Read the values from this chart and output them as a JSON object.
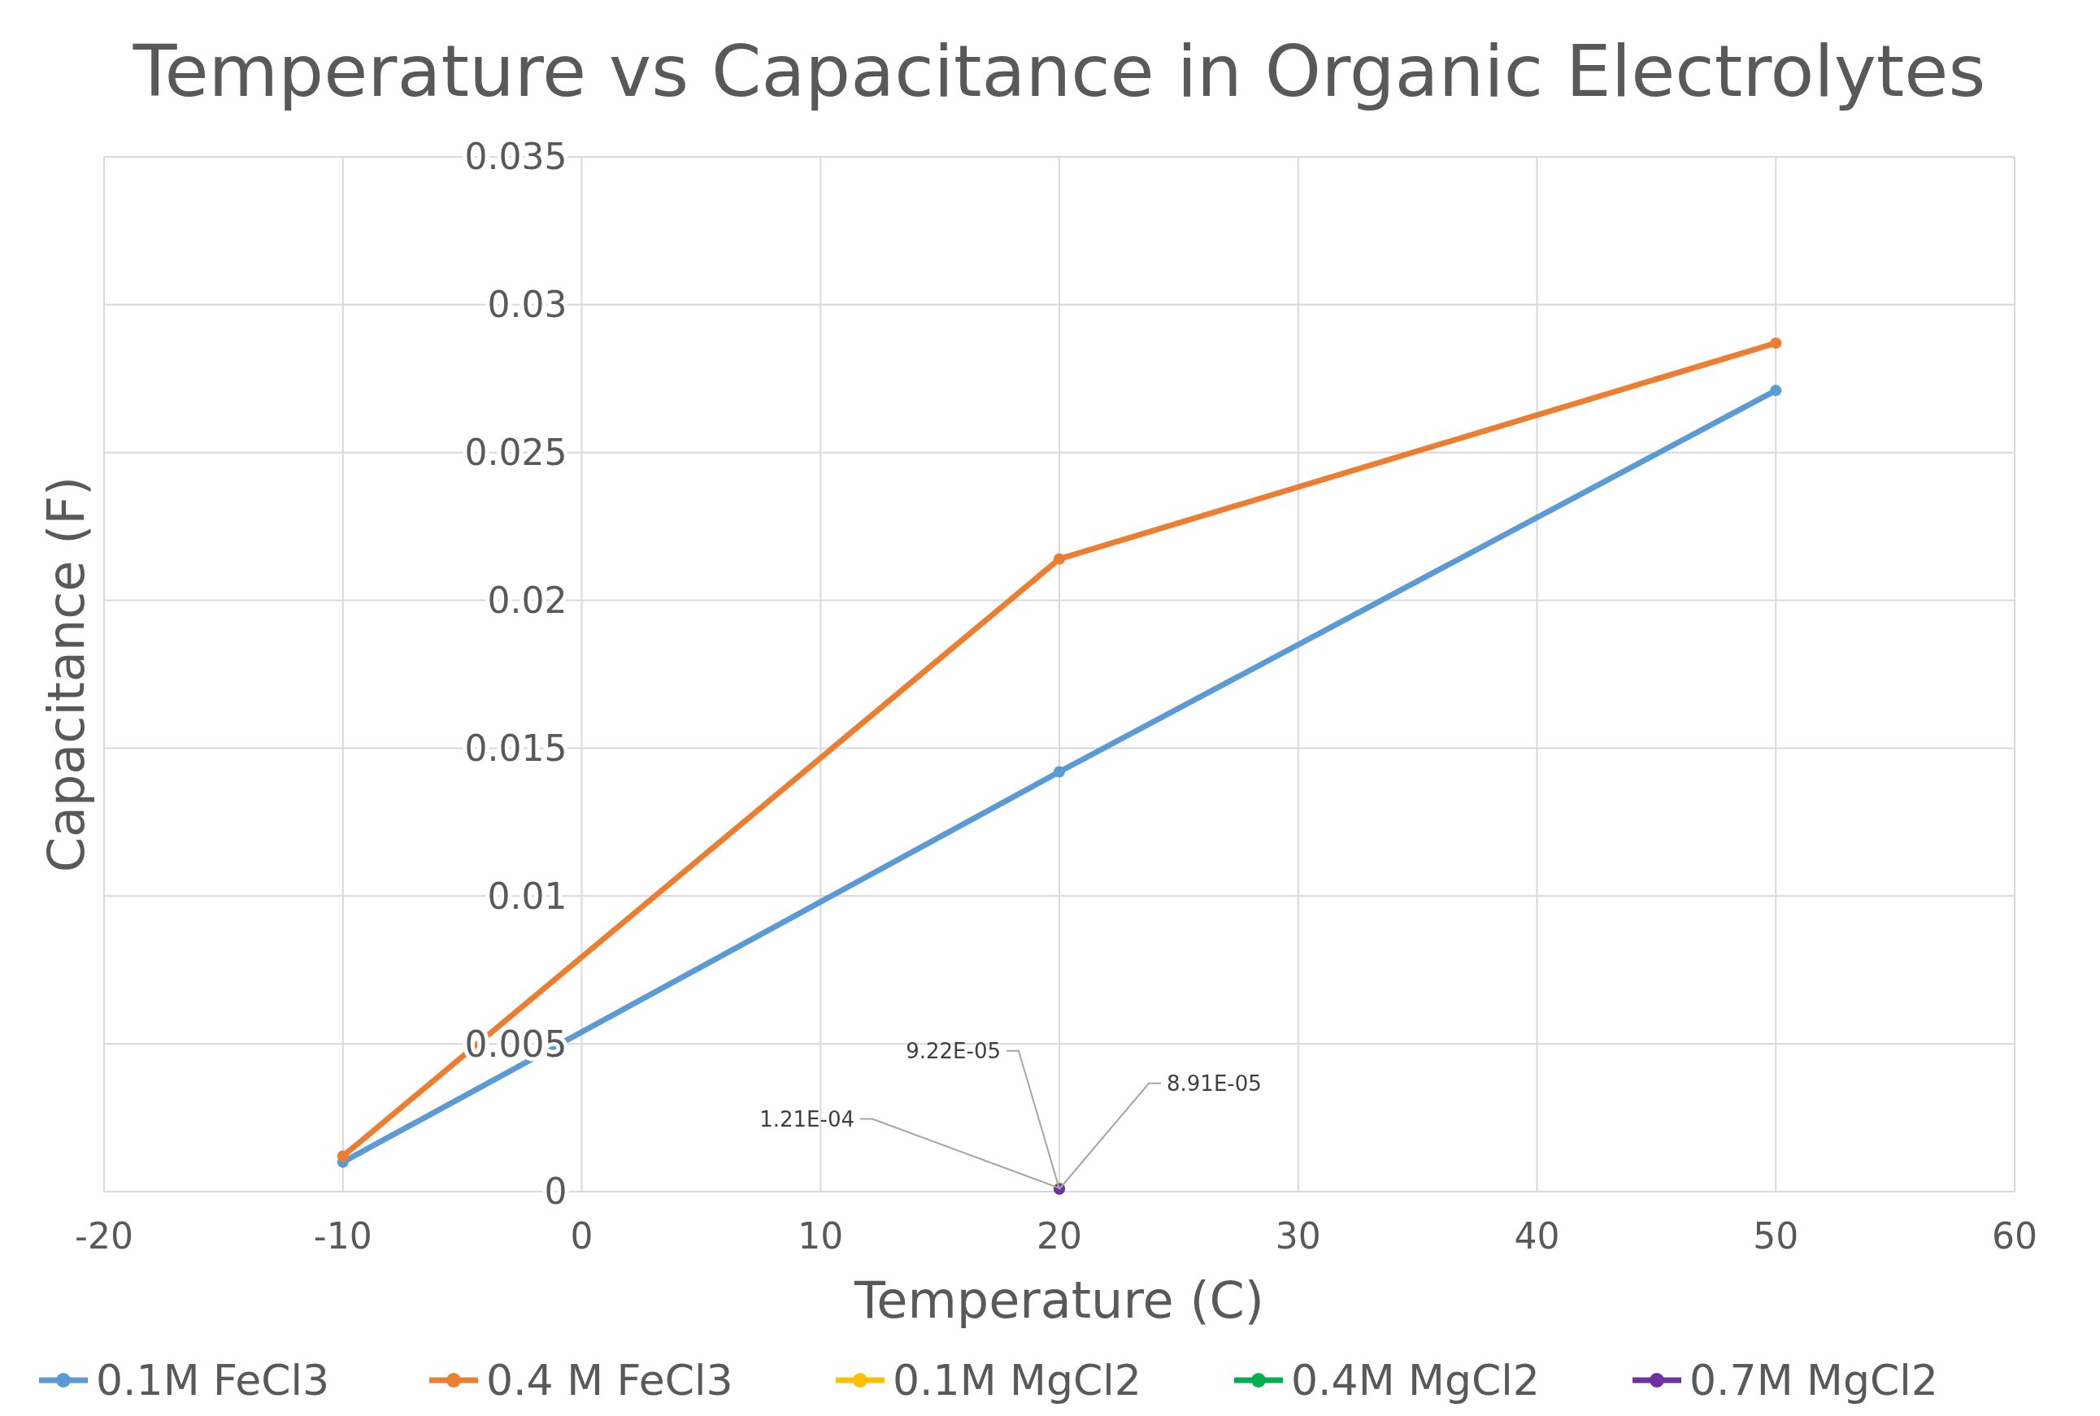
{
  "chart_data": {
    "type": "line",
    "title": "Temperature vs Capacitance in Organic Electrolytes",
    "xlabel": "Temperature (C)",
    "ylabel": "Capacitance (F)",
    "xlim": [
      -20,
      60
    ],
    "xticks": [
      -20,
      -10,
      0,
      10,
      20,
      30,
      40,
      50,
      60
    ],
    "ylim": [
      0,
      0.035
    ],
    "yticks": [
      0,
      0.005,
      0.01,
      0.015,
      0.02,
      0.025,
      0.03,
      0.035
    ],
    "grid": true,
    "legend": "bottom",
    "marker": "circle",
    "line_style": "solid",
    "series": [
      {
        "name": "0.1M FeCl3",
        "color": "#5b9bd5",
        "x": [
          -10,
          20,
          50
        ],
        "values": [
          0.001,
          0.0142,
          0.0271
        ]
      },
      {
        "name": "0.4 M FeCl3",
        "color": "#ed7d31",
        "x": [
          -10,
          20,
          50
        ],
        "values": [
          0.0012,
          0.0214,
          0.0287
        ]
      },
      {
        "name": "0.1M MgCl2",
        "color": "#ffc000",
        "x": [
          20
        ],
        "values": [
          0.000121
        ],
        "value_labels": [
          "1.21E-04"
        ]
      },
      {
        "name": "0.4M MgCl2",
        "color": "#00b050",
        "x": [
          20
        ],
        "values": [
          9.22e-05
        ],
        "value_labels": [
          "9.22E-05"
        ]
      },
      {
        "name": "0.7M MgCl2",
        "color": "#7030a0",
        "x": [
          20
        ],
        "values": [
          8.91e-05
        ],
        "value_labels": [
          "8.91E-05"
        ]
      }
    ]
  }
}
